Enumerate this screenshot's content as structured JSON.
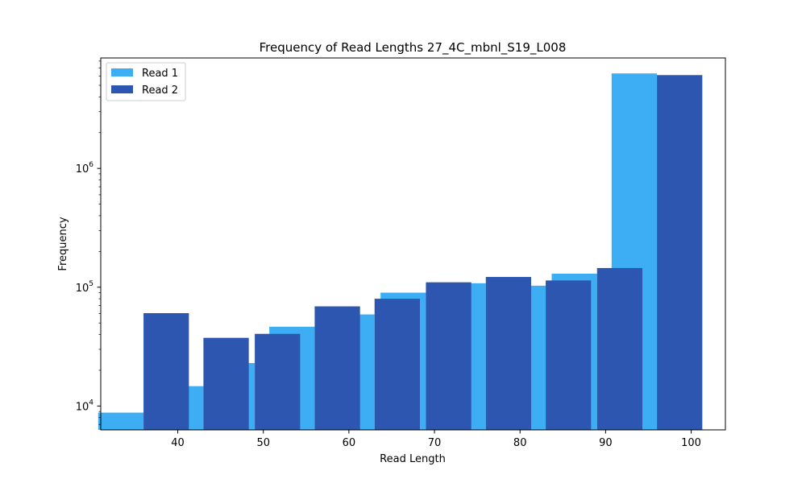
{
  "chart_data": {
    "type": "bar",
    "title": "Frequency of Read Lengths 27_4C_mbnl_S19_L008",
    "xlabel": "Read Length",
    "ylabel": "Frequency",
    "y_scale": "log",
    "ylim": [
      6300,
      8500000
    ],
    "xlim": [
      31.0,
      104.0
    ],
    "x_ticks": [
      40,
      50,
      60,
      70,
      80,
      90,
      100
    ],
    "y_ticks": [
      {
        "value": 10000,
        "label_base": "10",
        "label_exp": "4"
      },
      {
        "value": 100000,
        "label_base": "10",
        "label_exp": "5"
      },
      {
        "value": 1000000,
        "label_base": "10",
        "label_exp": "6"
      }
    ],
    "categories": [
      36,
      43,
      49,
      56,
      63,
      69,
      76,
      83,
      89,
      96
    ],
    "bar_width": 5.3,
    "series": [
      {
        "name": "Read 1",
        "color": "#3daef3",
        "values": [
          8800,
          14700,
          23000,
          46500,
          59000,
          90000,
          108000,
          103000,
          130000,
          6300000
        ]
      },
      {
        "name": "Read 2",
        "color": "#2d56b1",
        "values": [
          60500,
          37500,
          40500,
          69000,
          80000,
          110000,
          122000,
          114000,
          145000,
          6100000
        ]
      }
    ],
    "legend": {
      "position": "top-left"
    },
    "grid": false
  }
}
